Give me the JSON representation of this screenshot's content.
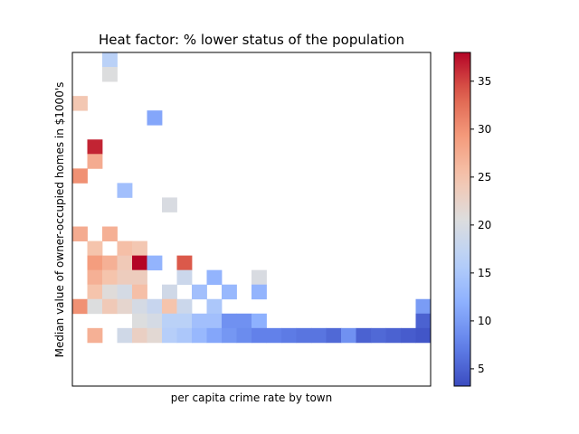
{
  "chart_data": {
    "type": "heatmap",
    "title": "Heat factor: % lower status of the population",
    "xlabel": "per capita crime rate by town",
    "ylabel": "Median value of owner-occupied homes in $1000's",
    "grid_cols": 24,
    "grid_rows": 23,
    "row_order": "top-to-bottom",
    "colormap": "coolwarm",
    "vmin": 3.2,
    "vmax": 38,
    "colorbar_ticks": [
      5,
      10,
      15,
      20,
      25,
      30,
      35
    ],
    "colorbar_tick_labels": [
      "5",
      "10",
      "15",
      "20",
      "25",
      "30",
      "35"
    ],
    "axis_ticks_shown": false,
    "cells": [
      [
        2,
        0,
        16.5
      ],
      [
        2,
        1,
        20.5
      ],
      [
        0,
        3,
        24.5
      ],
      [
        5,
        4,
        11
      ],
      [
        1,
        6,
        36.5
      ],
      [
        1,
        7,
        27.5
      ],
      [
        0,
        8,
        30
      ],
      [
        3,
        9,
        14
      ],
      [
        6,
        10,
        20
      ],
      [
        0,
        12,
        27.5
      ],
      [
        2,
        12,
        27
      ],
      [
        1,
        13,
        25
      ],
      [
        3,
        13,
        25.5
      ],
      [
        4,
        13,
        24.5
      ],
      [
        1,
        14,
        29
      ],
      [
        2,
        14,
        27
      ],
      [
        3,
        14,
        24
      ],
      [
        4,
        14,
        38
      ],
      [
        5,
        14,
        12.5
      ],
      [
        7,
        14,
        34
      ],
      [
        1,
        15,
        27
      ],
      [
        2,
        15,
        25
      ],
      [
        3,
        15,
        23.5
      ],
      [
        4,
        15,
        23.5
      ],
      [
        7,
        15,
        18.5
      ],
      [
        9,
        15,
        12.5
      ],
      [
        12,
        15,
        20
      ],
      [
        1,
        16,
        25
      ],
      [
        2,
        16,
        21
      ],
      [
        3,
        16,
        19.5
      ],
      [
        4,
        16,
        25.5
      ],
      [
        6,
        16,
        19
      ],
      [
        8,
        16,
        14
      ],
      [
        10,
        16,
        13
      ],
      [
        12,
        16,
        12.5
      ],
      [
        0,
        17,
        30
      ],
      [
        1,
        17,
        20.5
      ],
      [
        2,
        17,
        24
      ],
      [
        3,
        17,
        22
      ],
      [
        4,
        17,
        19.5
      ],
      [
        5,
        17,
        18
      ],
      [
        6,
        17,
        25
      ],
      [
        7,
        17,
        18.5
      ],
      [
        9,
        17,
        15
      ],
      [
        23,
        17,
        10
      ],
      [
        4,
        18,
        20.5
      ],
      [
        5,
        18,
        19.5
      ],
      [
        6,
        18,
        16.5
      ],
      [
        7,
        18,
        16.5
      ],
      [
        8,
        18,
        14
      ],
      [
        9,
        18,
        14
      ],
      [
        10,
        18,
        9
      ],
      [
        11,
        18,
        9
      ],
      [
        12,
        18,
        12
      ],
      [
        23,
        18,
        5
      ],
      [
        1,
        19,
        27
      ],
      [
        3,
        19,
        19
      ],
      [
        4,
        19,
        23
      ],
      [
        5,
        19,
        21.5
      ],
      [
        6,
        19,
        16
      ],
      [
        7,
        19,
        15
      ],
      [
        8,
        19,
        13
      ],
      [
        9,
        19,
        11
      ],
      [
        10,
        19,
        9.5
      ],
      [
        11,
        19,
        8.5
      ],
      [
        12,
        19,
        7.5
      ],
      [
        13,
        19,
        7.5
      ],
      [
        14,
        19,
        7
      ],
      [
        15,
        19,
        6.5
      ],
      [
        16,
        19,
        6.5
      ],
      [
        17,
        19,
        5.5
      ],
      [
        18,
        19,
        9
      ],
      [
        19,
        19,
        5
      ],
      [
        20,
        19,
        5.5
      ],
      [
        21,
        19,
        5
      ],
      [
        22,
        19,
        4.5
      ],
      [
        23,
        19,
        4
      ]
    ]
  }
}
